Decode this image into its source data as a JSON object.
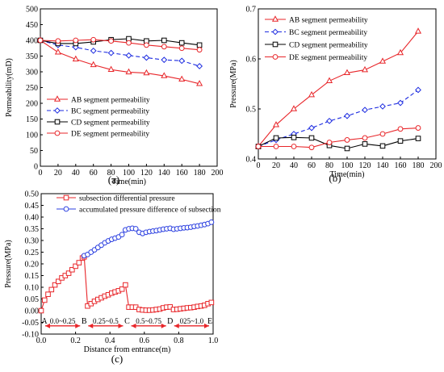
{
  "chart_data": [
    {
      "id": "a",
      "type": "line",
      "panel_label": "(a)",
      "xlabel": "Time(min)",
      "ylabel": "Permeability(mD)",
      "xlim": [
        0,
        200
      ],
      "ylim": [
        0,
        500
      ],
      "xticks": [
        0,
        20,
        40,
        60,
        80,
        100,
        120,
        140,
        160,
        180,
        200
      ],
      "yticks": [
        0,
        50,
        100,
        150,
        200,
        250,
        300,
        350,
        400,
        450,
        500
      ],
      "legend_position": "lower-left",
      "x": [
        0,
        20,
        40,
        60,
        80,
        100,
        120,
        140,
        160,
        180
      ],
      "series": [
        {
          "name": "AB segment permeability",
          "color": "#e8262a",
          "dash": "solid",
          "marker": "triangle",
          "values": [
            400,
            362,
            340,
            322,
            307,
            299,
            296,
            287,
            276,
            262
          ]
        },
        {
          "name": "BC segment permeability",
          "color": "#1c2be0",
          "dash": "dashed",
          "marker": "diamond",
          "values": [
            400,
            385,
            378,
            367,
            360,
            352,
            345,
            338,
            335,
            318
          ]
        },
        {
          "name": "CD segment permeability",
          "color": "#000000",
          "dash": "solid",
          "marker": "square",
          "values": [
            400,
            390,
            390,
            395,
            402,
            405,
            398,
            400,
            392,
            385
          ]
        },
        {
          "name": "DE segment permeability",
          "color": "#e8262a",
          "dash": "solid",
          "marker": "circle",
          "values": [
            400,
            398,
            400,
            402,
            398,
            392,
            385,
            380,
            375,
            370
          ]
        }
      ]
    },
    {
      "id": "b",
      "type": "line",
      "panel_label": "(b)",
      "xlabel": "Time(min)",
      "ylabel": "Pressure(MPa)",
      "xlim": [
        0,
        200
      ],
      "ylim": [
        0.4,
        0.7
      ],
      "xticks": [
        0,
        20,
        40,
        60,
        80,
        100,
        120,
        140,
        160,
        180,
        200
      ],
      "yticks": [
        0.4,
        0.5,
        0.6,
        0.7
      ],
      "legend_position": "top-left",
      "x": [
        0,
        20,
        40,
        60,
        80,
        100,
        120,
        140,
        160,
        180
      ],
      "series": [
        {
          "name": "AB segment permeability",
          "color": "#e8262a",
          "dash": "solid",
          "marker": "triangle",
          "values": [
            0.425,
            0.468,
            0.5,
            0.528,
            0.556,
            0.572,
            0.578,
            0.595,
            0.612,
            0.655
          ]
        },
        {
          "name": "BC segment permeability",
          "color": "#1c2be0",
          "dash": "dashed",
          "marker": "diamond",
          "values": [
            0.425,
            0.438,
            0.45,
            0.462,
            0.476,
            0.486,
            0.498,
            0.505,
            0.512,
            0.538
          ]
        },
        {
          "name": "CD segment permeability",
          "color": "#000000",
          "dash": "solid",
          "marker": "square",
          "values": [
            0.425,
            0.442,
            0.443,
            0.442,
            0.427,
            0.421,
            0.43,
            0.426,
            0.436,
            0.441
          ]
        },
        {
          "name": "DE segment permeability",
          "color": "#e8262a",
          "dash": "solid",
          "marker": "circle",
          "values": [
            0.425,
            0.425,
            0.425,
            0.423,
            0.433,
            0.438,
            0.442,
            0.45,
            0.46,
            0.462
          ]
        }
      ]
    },
    {
      "id": "c",
      "type": "line",
      "panel_label": "(c)",
      "xlabel": "Distance from entrance(m)",
      "ylabel": "Pressure(MPa)",
      "xlim": [
        0.0,
        1.0
      ],
      "ylim": [
        -0.1,
        0.5
      ],
      "xticks": [
        0.0,
        0.2,
        0.4,
        0.6,
        0.8,
        1.0
      ],
      "yticks": [
        -0.1,
        -0.05,
        0.0,
        0.05,
        0.1,
        0.15,
        0.2,
        0.25,
        0.3,
        0.35,
        0.4,
        0.45,
        0.5
      ],
      "legend_position": "top-left",
      "series": [
        {
          "name": "subsection differential pressure",
          "color": "#e8262a",
          "marker": "square",
          "points": [
            [
              0.0,
              0.0
            ],
            [
              0.02,
              0.045
            ],
            [
              0.04,
              0.07
            ],
            [
              0.06,
              0.09
            ],
            [
              0.08,
              0.11
            ],
            [
              0.1,
              0.125
            ],
            [
              0.12,
              0.14
            ],
            [
              0.14,
              0.15
            ],
            [
              0.16,
              0.16
            ],
            [
              0.18,
              0.175
            ],
            [
              0.2,
              0.19
            ],
            [
              0.22,
              0.205
            ],
            [
              0.24,
              0.225
            ],
            [
              0.25,
              0.23
            ],
            [
              0.27,
              0.02
            ],
            [
              0.29,
              0.03
            ],
            [
              0.31,
              0.04
            ],
            [
              0.33,
              0.048
            ],
            [
              0.35,
              0.055
            ],
            [
              0.37,
              0.062
            ],
            [
              0.39,
              0.068
            ],
            [
              0.41,
              0.075
            ],
            [
              0.43,
              0.08
            ],
            [
              0.45,
              0.085
            ],
            [
              0.47,
              0.092
            ],
            [
              0.49,
              0.11
            ],
            [
              0.51,
              0.015
            ],
            [
              0.53,
              0.015
            ],
            [
              0.55,
              0.015
            ],
            [
              0.57,
              0.005
            ],
            [
              0.59,
              0.003
            ],
            [
              0.61,
              0.002
            ],
            [
              0.63,
              0.002
            ],
            [
              0.65,
              0.003
            ],
            [
              0.67,
              0.005
            ],
            [
              0.69,
              0.007
            ],
            [
              0.71,
              0.012
            ],
            [
              0.73,
              0.015
            ],
            [
              0.75,
              0.016
            ],
            [
              0.77,
              0.005
            ],
            [
              0.79,
              0.006
            ],
            [
              0.81,
              0.008
            ],
            [
              0.83,
              0.01
            ],
            [
              0.85,
              0.012
            ],
            [
              0.87,
              0.013
            ],
            [
              0.89,
              0.015
            ],
            [
              0.91,
              0.018
            ],
            [
              0.93,
              0.02
            ],
            [
              0.95,
              0.023
            ],
            [
              0.97,
              0.03
            ],
            [
              0.99,
              0.035
            ]
          ]
        },
        {
          "name": "accumulated pressure difference of subsection",
          "color": "#2b3fe0",
          "marker": "circle",
          "points": [
            [
              0.25,
              0.235
            ],
            [
              0.27,
              0.24
            ],
            [
              0.29,
              0.25
            ],
            [
              0.31,
              0.26
            ],
            [
              0.33,
              0.27
            ],
            [
              0.35,
              0.28
            ],
            [
              0.37,
              0.29
            ],
            [
              0.39,
              0.298
            ],
            [
              0.41,
              0.305
            ],
            [
              0.43,
              0.31
            ],
            [
              0.45,
              0.315
            ],
            [
              0.47,
              0.325
            ],
            [
              0.49,
              0.345
            ],
            [
              0.51,
              0.35
            ],
            [
              0.53,
              0.352
            ],
            [
              0.55,
              0.35
            ],
            [
              0.57,
              0.335
            ],
            [
              0.59,
              0.33
            ],
            [
              0.61,
              0.335
            ],
            [
              0.63,
              0.338
            ],
            [
              0.65,
              0.34
            ],
            [
              0.67,
              0.342
            ],
            [
              0.69,
              0.345
            ],
            [
              0.71,
              0.348
            ],
            [
              0.73,
              0.35
            ],
            [
              0.75,
              0.352
            ],
            [
              0.77,
              0.348
            ],
            [
              0.79,
              0.35
            ],
            [
              0.81,
              0.352
            ],
            [
              0.83,
              0.354
            ],
            [
              0.85,
              0.355
            ],
            [
              0.87,
              0.357
            ],
            [
              0.89,
              0.36
            ],
            [
              0.91,
              0.362
            ],
            [
              0.93,
              0.365
            ],
            [
              0.95,
              0.368
            ],
            [
              0.97,
              0.372
            ],
            [
              0.99,
              0.378
            ]
          ]
        }
      ],
      "segments": [
        {
          "letter": "A",
          "x": 0.0,
          "range_label": "0.0~0.25"
        },
        {
          "letter": "B",
          "x": 0.25,
          "range_label": "0.25~0.5"
        },
        {
          "letter": "C",
          "x": 0.5,
          "range_label": "0.5~0.75"
        },
        {
          "letter": "D",
          "x": 0.75,
          "range_label": "025~1.0"
        },
        {
          "letter": "E",
          "x": 1.0,
          "range_label": ""
        }
      ]
    }
  ]
}
